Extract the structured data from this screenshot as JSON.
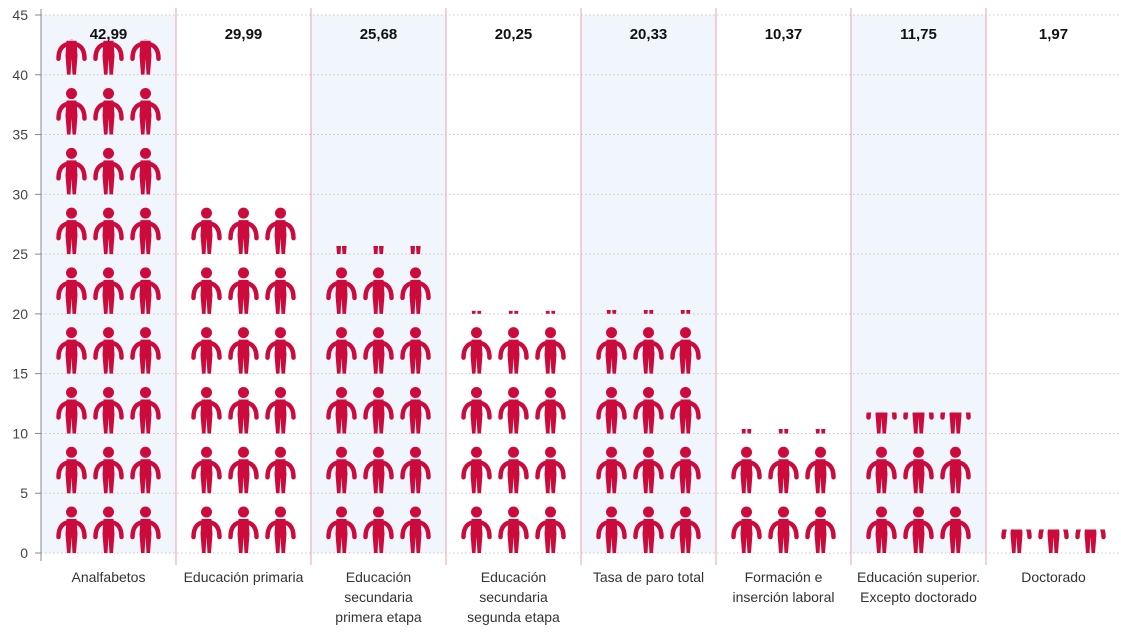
{
  "chart_data": {
    "type": "bar",
    "categories": [
      [
        "Analfabetos"
      ],
      [
        "Educación primaria"
      ],
      [
        "Educación",
        "secundaria",
        "primera etapa"
      ],
      [
        "Educación",
        "secundaria",
        "segunda etapa"
      ],
      [
        "Tasa de paro total"
      ],
      [
        "Formación e",
        "inserción laboral"
      ],
      [
        "Educación superior.",
        "Excepto doctorado"
      ],
      [
        "Doctorado"
      ]
    ],
    "values": [
      42.99,
      29.99,
      25.68,
      20.25,
      20.33,
      10.37,
      11.75,
      1.97
    ],
    "value_labels": [
      "42,99",
      "29,99",
      "25,68",
      "20,25",
      "20,33",
      "10,37",
      "11,75",
      "1,97"
    ],
    "title": "",
    "xlabel": "",
    "ylabel": "",
    "ylim": [
      0,
      45
    ],
    "yticks": [
      "0",
      "5",
      "10",
      "15",
      "20",
      "25",
      "30",
      "35",
      "40",
      "45"
    ],
    "grid": true,
    "legend": "none",
    "colors": {
      "icon": "#cc0a3c",
      "shade": "#f1f6fd",
      "separator": "#e8a0b0",
      "grid": "#c8c8c8"
    }
  }
}
